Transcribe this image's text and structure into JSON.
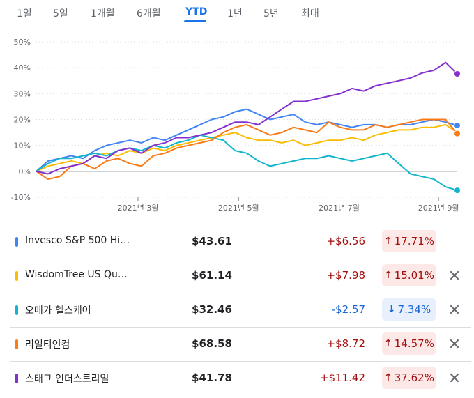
{
  "tabs": [
    {
      "label": "1일",
      "active": false
    },
    {
      "label": "5일",
      "active": false
    },
    {
      "label": "1개월",
      "active": false
    },
    {
      "label": "6개월",
      "active": false
    },
    {
      "label": "YTD",
      "active": true
    },
    {
      "label": "1년",
      "active": false
    },
    {
      "label": "5년",
      "active": false
    },
    {
      "label": "최대",
      "active": false
    }
  ],
  "chart_data": {
    "type": "line",
    "title": "",
    "xlabel": "",
    "ylabel": "",
    "ylim": [
      -10,
      50
    ],
    "yticks": [
      50,
      40,
      30,
      20,
      10,
      0,
      -10
    ],
    "ytick_labels": [
      "50%",
      "40%",
      "30%",
      "20%",
      "10%",
      "0%",
      "-10%"
    ],
    "xlim": [
      0,
      36
    ],
    "xtick_labels": [
      "2021년 3월",
      "2021년 5월",
      "2021년 7월",
      "2021년 9월"
    ],
    "xticks": [
      8.7,
      17.3,
      25.9,
      34.4
    ],
    "zero_line": true,
    "grid": "horizontal dotted",
    "series": [
      {
        "name": "Invesco S&P 500 Hi…",
        "color": "#4285f4",
        "values": [
          0,
          4,
          5,
          6,
          5,
          8,
          10,
          11,
          12,
          11,
          13,
          12,
          14,
          16,
          18,
          20,
          21,
          23,
          24,
          22,
          20,
          21,
          22,
          19,
          18,
          19,
          18,
          17,
          18,
          18,
          17,
          18,
          18,
          19,
          20,
          19,
          17.71
        ]
      },
      {
        "name": "WisdomTree US Qu…",
        "color": "#fbbc04",
        "values": [
          0,
          2,
          3,
          4,
          3,
          6,
          7,
          6,
          8,
          7,
          9,
          8,
          10,
          11,
          12,
          13,
          14,
          15,
          13,
          12,
          12,
          11,
          12,
          10,
          11,
          12,
          12,
          13,
          12,
          14,
          15,
          16,
          16,
          17,
          17,
          18,
          15.01
        ]
      },
      {
        "name": "오메가 헬스케어",
        "color": "#12b5cb",
        "values": [
          0,
          3,
          5,
          5,
          6,
          7,
          6,
          8,
          9,
          8,
          10,
          9,
          11,
          12,
          14,
          13,
          12,
          8,
          7,
          4,
          2,
          3,
          4,
          5,
          5,
          6,
          5,
          4,
          5,
          6,
          7,
          3,
          -1,
          -2,
          -3,
          -6,
          -7.34
        ]
      },
      {
        "name": "리얼티인컴",
        "color": "#fa7b17",
        "values": [
          0,
          -3,
          -2,
          2,
          3,
          1,
          4,
          5,
          3,
          2,
          6,
          7,
          9,
          10,
          11,
          12,
          15,
          17,
          18,
          16,
          14,
          15,
          17,
          16,
          15,
          19,
          17,
          16,
          16,
          18,
          17,
          18,
          19,
          20,
          20,
          20,
          14.57
        ]
      },
      {
        "name": "스태그 인더스트리얼",
        "color": "#8430ce",
        "values": [
          0,
          -1,
          1,
          2,
          3,
          6,
          5,
          8,
          9,
          7,
          10,
          11,
          13,
          13,
          14,
          15,
          17,
          19,
          19,
          18,
          21,
          24,
          27,
          27,
          28,
          29,
          30,
          32,
          31,
          33,
          34,
          35,
          36,
          38,
          39,
          42,
          37.62
        ]
      }
    ]
  },
  "holdings": [
    {
      "name": "Invesco S&P 500 Hi…",
      "color": "#4285f4",
      "price": "$43.61",
      "change": "+$6.56",
      "pct": "17.71%",
      "dir": "up",
      "arrow": "↑",
      "removable": false
    },
    {
      "name": "WisdomTree US Qu…",
      "color": "#fbbc04",
      "price": "$61.14",
      "change": "+$7.98",
      "pct": "15.01%",
      "dir": "up",
      "arrow": "↑",
      "removable": true
    },
    {
      "name": "오메가 헬스케어",
      "color": "#12b5cb",
      "price": "$32.46",
      "change": "-$2.57",
      "pct": "7.34%",
      "dir": "down",
      "arrow": "↓",
      "removable": true
    },
    {
      "name": "리얼티인컴",
      "color": "#fa7b17",
      "price": "$68.58",
      "change": "+$8.72",
      "pct": "14.57%",
      "dir": "up",
      "arrow": "↑",
      "removable": true
    },
    {
      "name": "스태그 인더스트리얼",
      "color": "#8430ce",
      "price": "$41.78",
      "change": "+$11.42",
      "pct": "37.62%",
      "dir": "up",
      "arrow": "↑",
      "removable": true
    }
  ]
}
